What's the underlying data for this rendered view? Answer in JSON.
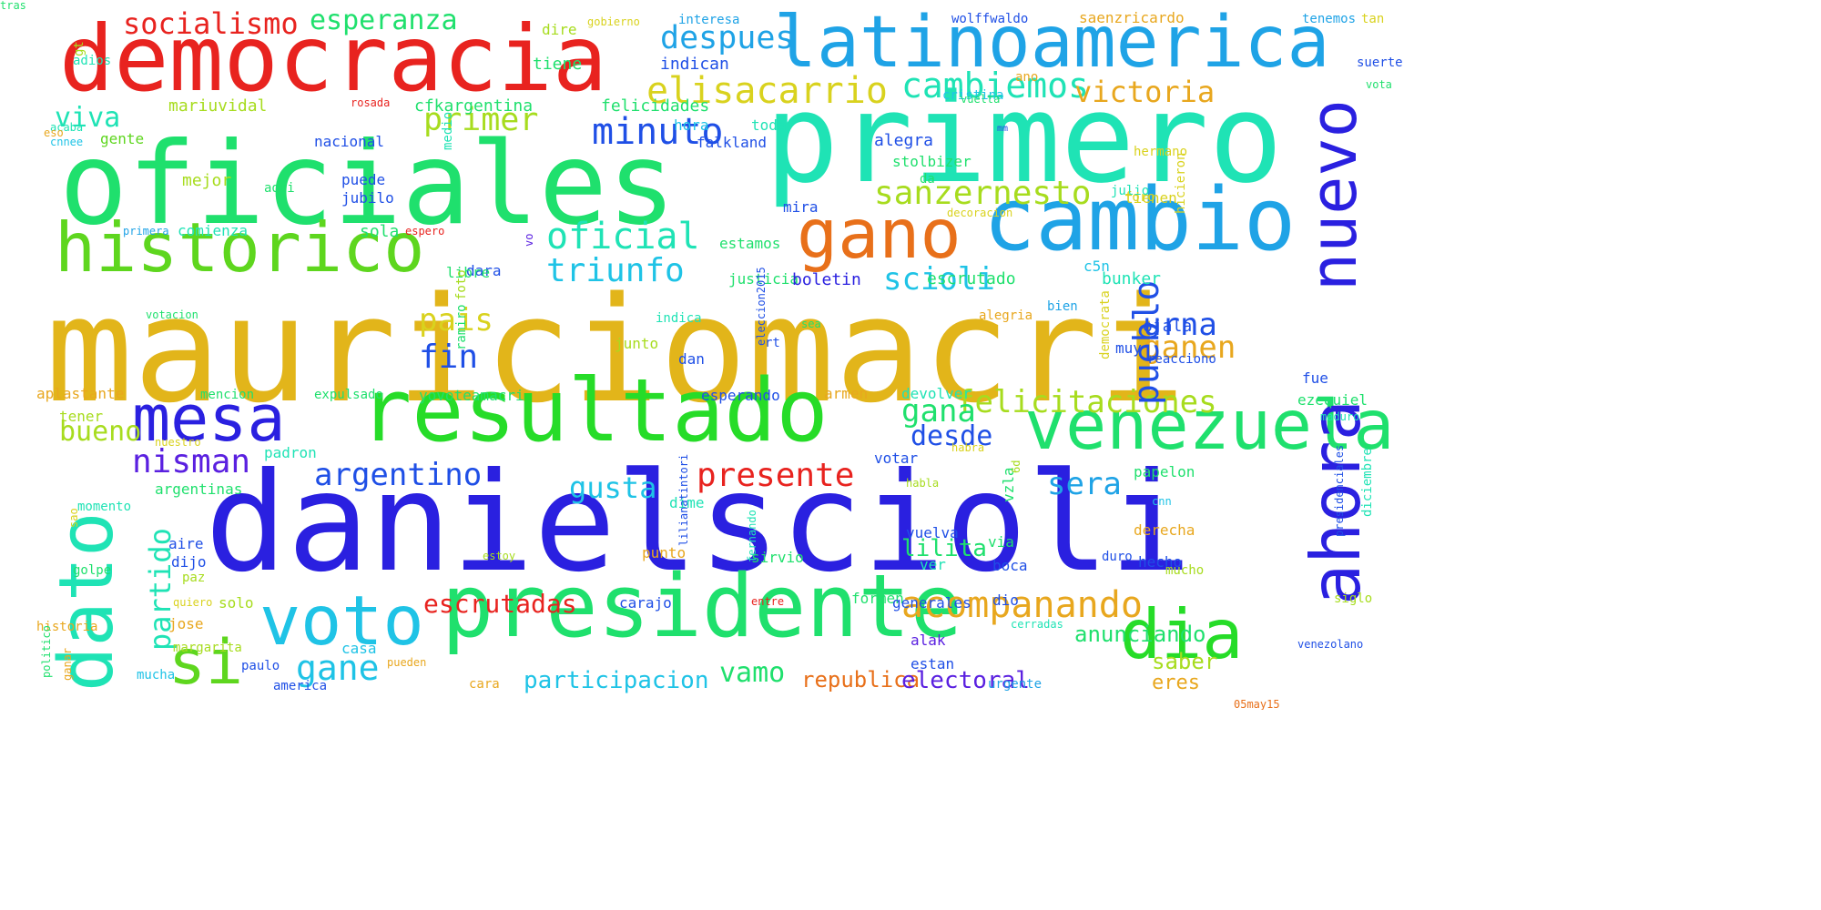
{
  "colors": {
    "red": "#e8231f",
    "orange": "#e8701a",
    "amber": "#e8a71e",
    "gold": "#e2b51a",
    "yellow": "#d9d21e",
    "lime": "#a7dc1e",
    "green": "#5ed61e",
    "green2": "#26dc28",
    "mint": "#1fe06d",
    "teal": "#1fe3b5",
    "cyan": "#1fc3e6",
    "sky": "#1fa3e6",
    "blue": "#1f4fe6",
    "deep": "#2a20e0",
    "violet": "#5a20e0"
  },
  "words": [
    {
      "text": "mauriciomacri",
      "c": "gold"
    },
    {
      "text": "danielscioli",
      "c": "deep"
    },
    {
      "text": "primero",
      "c": "teal"
    },
    {
      "text": "oficiales",
      "c": "mint"
    },
    {
      "text": "democracia",
      "c": "red"
    },
    {
      "text": "latinoamerica",
      "c": "sky"
    },
    {
      "text": "cambio",
      "c": "sky"
    },
    {
      "text": "resultado",
      "c": "green2"
    },
    {
      "text": "presidente",
      "c": "mint"
    },
    {
      "text": "historico",
      "c": "green"
    },
    {
      "text": "gano",
      "c": "orange"
    },
    {
      "text": "venezuela",
      "c": "mint"
    },
    {
      "text": "dato",
      "c": "teal"
    },
    {
      "text": "ahora",
      "c": "deep"
    },
    {
      "text": "nuevo",
      "c": "deep"
    },
    {
      "text": "mesa",
      "c": "deep"
    },
    {
      "text": "voto",
      "c": "cyan"
    },
    {
      "text": "dia",
      "c": "green2"
    },
    {
      "text": "si",
      "c": "green"
    },
    {
      "text": "socialismo",
      "c": "red"
    },
    {
      "text": "esperanza",
      "c": "mint"
    },
    {
      "text": "despues",
      "c": "sky"
    },
    {
      "text": "elisacarrio",
      "c": "yellow"
    },
    {
      "text": "cambiemos",
      "c": "teal"
    },
    {
      "text": "victoria",
      "c": "amber"
    },
    {
      "text": "minuto",
      "c": "blue"
    },
    {
      "text": "sanzernesto",
      "c": "lime"
    },
    {
      "text": "oficial",
      "c": "teal"
    },
    {
      "text": "triunfo",
      "c": "cyan"
    },
    {
      "text": "primer",
      "c": "lime"
    },
    {
      "text": "viva",
      "c": "teal"
    },
    {
      "text": "scioli",
      "c": "cyan"
    },
    {
      "text": "pais",
      "c": "yellow"
    },
    {
      "text": "fin",
      "c": "blue"
    },
    {
      "text": "felicitaciones",
      "c": "lime"
    },
    {
      "text": "gana",
      "c": "mint"
    },
    {
      "text": "urna",
      "c": "blue"
    },
    {
      "text": "ganen",
      "c": "amber"
    },
    {
      "text": "pueblo",
      "c": "blue"
    },
    {
      "text": "acompanando",
      "c": "amber"
    },
    {
      "text": "nisman",
      "c": "violet"
    },
    {
      "text": "argentino",
      "c": "blue"
    },
    {
      "text": "presente",
      "c": "red"
    },
    {
      "text": "gusta",
      "c": "cyan"
    },
    {
      "text": "sera",
      "c": "sky"
    },
    {
      "text": "bueno",
      "c": "lime"
    },
    {
      "text": "desde",
      "c": "blue"
    },
    {
      "text": "partido",
      "c": "teal"
    },
    {
      "text": "gane",
      "c": "cyan"
    },
    {
      "text": "lilita",
      "c": "mint"
    },
    {
      "text": "escrutadas",
      "c": "red"
    },
    {
      "text": "vamo",
      "c": "mint"
    },
    {
      "text": "participacion",
      "c": "cyan"
    },
    {
      "text": "republica",
      "c": "orange"
    },
    {
      "text": "electoral",
      "c": "violet"
    },
    {
      "text": "anunciando",
      "c": "mint"
    },
    {
      "text": "saber",
      "c": "lime"
    },
    {
      "text": "eres",
      "c": "amber"
    },
    {
      "text": "mariuvidal",
      "c": "lime"
    },
    {
      "text": "cfkargentina",
      "c": "mint"
    },
    {
      "text": "felicidades",
      "c": "mint"
    },
    {
      "text": "indican",
      "c": "blue"
    },
    {
      "text": "tiene",
      "c": "mint"
    },
    {
      "text": "dire",
      "c": "lime"
    },
    {
      "text": "gobierno",
      "c": "yellow"
    },
    {
      "text": "interesa",
      "c": "sky"
    },
    {
      "text": "wolffwaldo",
      "c": "blue"
    },
    {
      "text": "saenzricardo",
      "c": "amber"
    },
    {
      "text": "tenemos",
      "c": "sky"
    },
    {
      "text": "tan",
      "c": "yellow"
    },
    {
      "text": "suerte",
      "c": "blue"
    },
    {
      "text": "vota",
      "c": "mint"
    },
    {
      "text": "ano",
      "c": "amber"
    },
    {
      "text": "cristina",
      "c": "cyan"
    },
    {
      "text": "vuelta",
      "c": "mint"
    },
    {
      "text": "rosada",
      "c": "red"
    },
    {
      "text": "adios",
      "c": "teal"
    },
    {
      "text": "gt",
      "c": "lime"
    },
    {
      "text": "gente",
      "c": "green"
    },
    {
      "text": "hora",
      "c": "cyan"
    },
    {
      "text": "toda",
      "c": "teal"
    },
    {
      "text": "falkland",
      "c": "blue"
    },
    {
      "text": "nacional",
      "c": "blue"
    },
    {
      "text": "alegra",
      "c": "blue"
    },
    {
      "text": "mm",
      "c": "blue"
    },
    {
      "text": "hermano",
      "c": "yellow"
    },
    {
      "text": "acaba",
      "c": "teal"
    },
    {
      "text": "cnnee",
      "c": "cyan"
    },
    {
      "text": "mejor",
      "c": "lime"
    },
    {
      "text": "aqui",
      "c": "mint"
    },
    {
      "text": "puede",
      "c": "blue"
    },
    {
      "text": "jubilo",
      "c": "blue"
    },
    {
      "text": "stolbizer",
      "c": "mint"
    },
    {
      "text": "da",
      "c": "mint"
    },
    {
      "text": "foro",
      "c": "yellow"
    },
    {
      "text": "julio",
      "c": "teal"
    },
    {
      "text": "tienen",
      "c": "yellow"
    },
    {
      "text": "hicieron",
      "c": "yellow"
    },
    {
      "text": "mira",
      "c": "blue"
    },
    {
      "text": "estamos",
      "c": "mint"
    },
    {
      "text": "c5n",
      "c": "cyan"
    },
    {
      "text": "decoracion",
      "c": "yellow"
    },
    {
      "text": "comienza",
      "c": "teal"
    },
    {
      "text": "sola",
      "c": "mint"
    },
    {
      "text": "dara",
      "c": "blue"
    },
    {
      "text": "espero",
      "c": "red"
    },
    {
      "text": "vo",
      "c": "violet"
    },
    {
      "text": "primera",
      "c": "sky"
    },
    {
      "text": "libre",
      "c": "mint"
    },
    {
      "text": "justicia",
      "c": "mint"
    },
    {
      "text": "boletin",
      "c": "deep"
    },
    {
      "text": "escrutado",
      "c": "mint"
    },
    {
      "text": "bien",
      "c": "sky"
    },
    {
      "text": "bunker",
      "c": "teal"
    },
    {
      "text": "votacion",
      "c": "mint"
    },
    {
      "text": "eso",
      "c": "amber"
    },
    {
      "text": "indica",
      "c": "teal"
    },
    {
      "text": "sea",
      "c": "mint"
    },
    {
      "text": "alegria",
      "c": "amber"
    },
    {
      "text": "ojala",
      "c": "blue"
    },
    {
      "text": "junto",
      "c": "lime"
    },
    {
      "text": "dan",
      "c": "blue"
    },
    {
      "text": "rt",
      "c": "blue"
    },
    {
      "text": "muy",
      "c": "blue"
    },
    {
      "text": "reacciono",
      "c": "blue"
    },
    {
      "text": "fue",
      "c": "blue"
    },
    {
      "text": "aplastante",
      "c": "amber"
    },
    {
      "text": "mencion",
      "c": "mint"
    },
    {
      "text": "expulsado",
      "c": "mint"
    },
    {
      "text": "yovoteamacri",
      "c": "mint"
    },
    {
      "text": "esperando",
      "c": "blue"
    },
    {
      "text": "armen",
      "c": "amber"
    },
    {
      "text": "devolver",
      "c": "teal"
    },
    {
      "text": "ezequiel",
      "c": "mint"
    },
    {
      "text": "maduro",
      "c": "teal"
    },
    {
      "text": "tener",
      "c": "lime"
    },
    {
      "text": "nuestro",
      "c": "yellow"
    },
    {
      "text": "padron",
      "c": "teal"
    },
    {
      "text": "votar",
      "c": "blue"
    },
    {
      "text": "habra",
      "c": "yellow"
    },
    {
      "text": "argentinas",
      "c": "mint"
    },
    {
      "text": "momento",
      "c": "teal"
    },
    {
      "text": "habla",
      "c": "lime"
    },
    {
      "text": "papelon",
      "c": "mint"
    },
    {
      "text": "cnn",
      "c": "cyan"
    },
    {
      "text": "dime",
      "c": "teal"
    },
    {
      "text": "vzla",
      "c": "mint"
    },
    {
      "text": "aire",
      "c": "blue"
    },
    {
      "text": "dijo",
      "c": "blue"
    },
    {
      "text": "golpe",
      "c": "mint"
    },
    {
      "text": "paz",
      "c": "lime"
    },
    {
      "text": "quiero",
      "c": "yellow"
    },
    {
      "text": "vuelva",
      "c": "blue"
    },
    {
      "text": "via",
      "c": "mint"
    },
    {
      "text": "derecha",
      "c": "amber"
    },
    {
      "text": "punto",
      "c": "amber"
    },
    {
      "text": "sirvio",
      "c": "mint"
    },
    {
      "text": "duro",
      "c": "blue"
    },
    {
      "text": "mucho",
      "c": "lime"
    },
    {
      "text": "boca",
      "c": "blue"
    },
    {
      "text": "hecho",
      "c": "blue"
    },
    {
      "text": "solo",
      "c": "lime"
    },
    {
      "text": "carajo",
      "c": "blue"
    },
    {
      "text": "dio",
      "c": "blue"
    },
    {
      "text": "formen",
      "c": "mint"
    },
    {
      "text": "generales",
      "c": "blue"
    },
    {
      "text": "jose",
      "c": "amber"
    },
    {
      "text": "margarita",
      "c": "lime"
    },
    {
      "text": "casa",
      "c": "cyan"
    },
    {
      "text": "historia",
      "c": "amber"
    },
    {
      "text": "paulo",
      "c": "blue"
    },
    {
      "text": "pueden",
      "c": "amber"
    },
    {
      "text": "america",
      "c": "blue"
    },
    {
      "text": "mucha",
      "c": "cyan"
    },
    {
      "text": "cara",
      "c": "amber"
    },
    {
      "text": "alak",
      "c": "violet"
    },
    {
      "text": "estan",
      "c": "blue"
    },
    {
      "text": "urgente",
      "c": "sky"
    },
    {
      "text": "ganar",
      "c": "amber"
    },
    {
      "text": "05may15",
      "c": "orange"
    },
    {
      "text": "venezolano",
      "c": "blue"
    },
    {
      "text": "entre",
      "c": "red"
    },
    {
      "text": "siglo",
      "c": "lime"
    },
    {
      "text": "ver",
      "c": "teal"
    },
    {
      "text": "cerradas",
      "c": "teal"
    },
    {
      "text": "6d",
      "c": "lime"
    },
    {
      "text": "medio",
      "c": "teal"
    },
    {
      "text": "foto",
      "c": "lime"
    },
    {
      "text": "ramiro",
      "c": "mint"
    },
    {
      "text": "eleccion2015",
      "c": "blue"
    },
    {
      "text": "democrata",
      "c": "yellow"
    },
    {
      "text": "diciembre",
      "c": "teal"
    },
    {
      "text": "presidenciales",
      "c": "blue"
    },
    {
      "text": "fernando",
      "c": "teal"
    },
    {
      "text": "lilianatintori",
      "c": "blue"
    },
    {
      "text": "estoy",
      "c": "lime"
    },
    {
      "text": "sao",
      "c": "yellow"
    },
    {
      "text": "politico",
      "c": "mint"
    },
    {
      "text": "tras",
      "c": "mint"
    }
  ]
}
